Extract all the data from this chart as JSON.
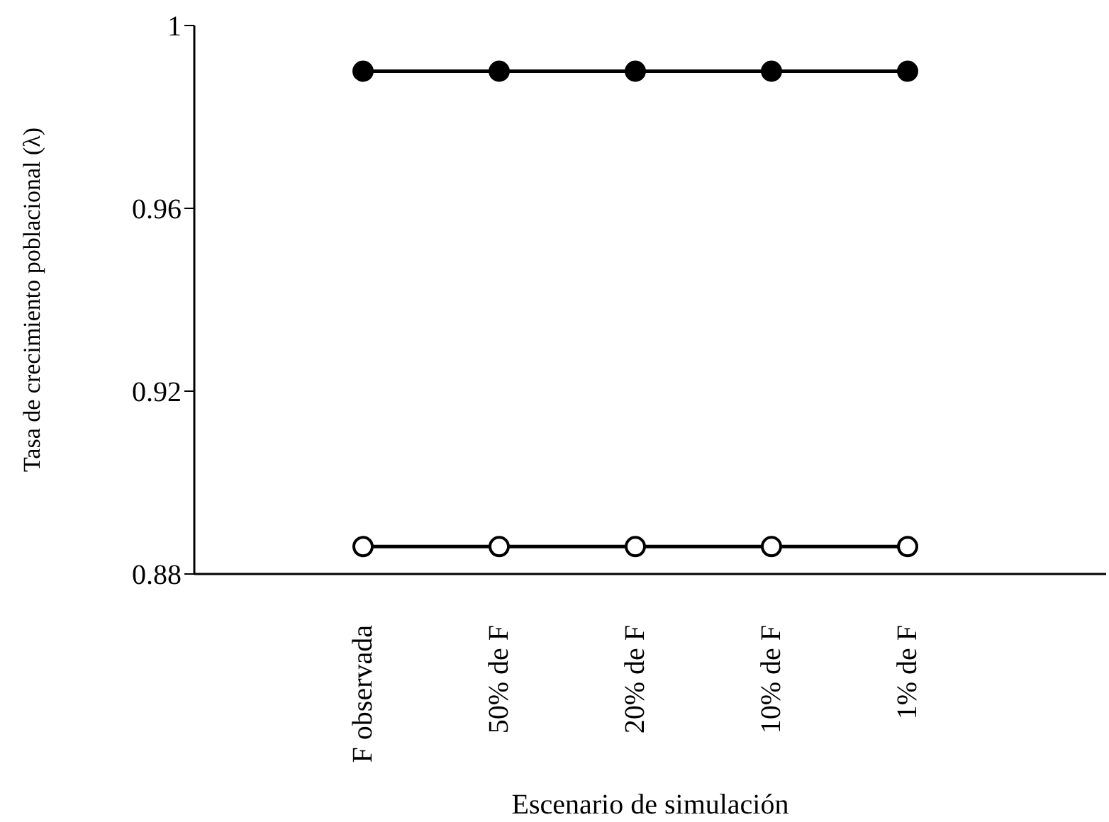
{
  "chart_data": {
    "type": "line",
    "xlabel": "Escenario de simulación",
    "ylabel": "Tasa de crecimiento poblacional (λ)",
    "categories": [
      "F observada",
      "50% de F",
      "20% de F",
      "10% de F",
      "1% de F"
    ],
    "series": [
      {
        "color": "#000000",
        "values": [
          0.99,
          0.99,
          0.99,
          0.99,
          0.99
        ]
      },
      {
        "color": "#000000",
        "values": [
          0.886,
          0.886,
          0.886,
          0.886,
          0.886
        ]
      }
    ],
    "ylim": [
      0.88,
      1
    ],
    "yticks": [
      0.88,
      0.92,
      0.96,
      1
    ],
    "grid": false,
    "legend": false,
    "marker": "circle",
    "line_style": "solid"
  }
}
